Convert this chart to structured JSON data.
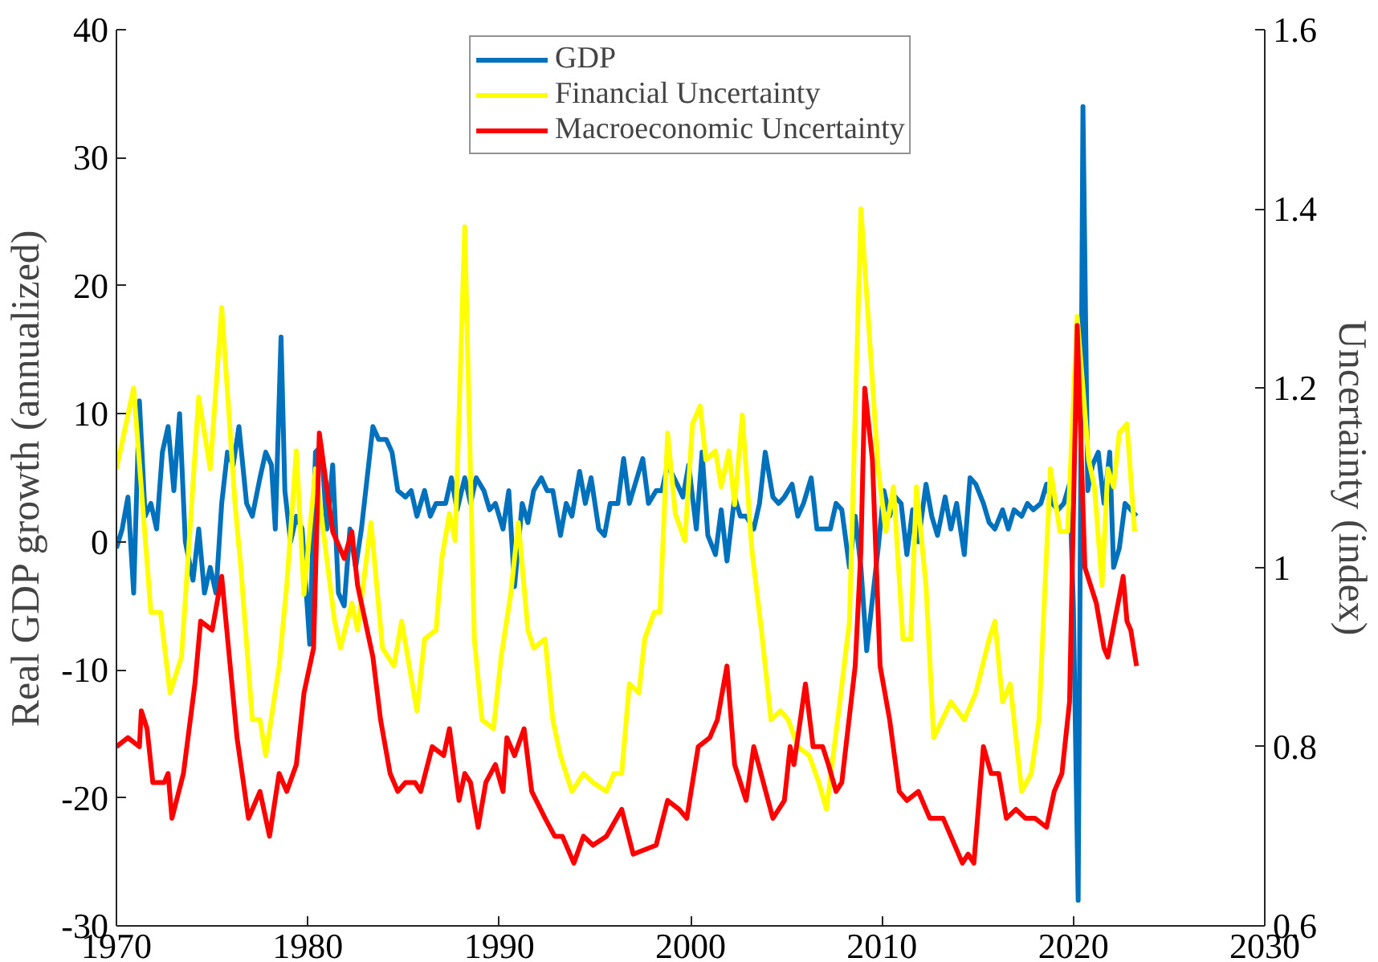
{
  "chart_data": {
    "type": "line",
    "ylabel": "Real GDP growth (annualized)",
    "y2label": "Uncertainty (index)",
    "xlim": [
      1970,
      2030
    ],
    "xticks": [
      1970,
      1980,
      1990,
      2000,
      2010,
      2020,
      2030
    ],
    "ylim": [
      -30,
      40
    ],
    "yticks": [
      -30,
      -20,
      -10,
      0,
      10,
      20,
      30,
      40
    ],
    "y2lim": [
      0.6,
      1.6
    ],
    "y2ticks": [
      0.6,
      0.8,
      1,
      1.2,
      1.4,
      1.6
    ],
    "grid": false,
    "legend": "top",
    "marker": "none",
    "line_style": "solid",
    "series": [
      {
        "name": "GDP",
        "color": "#0072bd",
        "x": [
          1970.0,
          1970.3,
          1970.6,
          1970.9,
          1971.2,
          1971.5,
          1971.8,
          1972.1,
          1972.4,
          1972.7,
          1973.0,
          1973.3,
          1973.6,
          1974.0,
          1974.3,
          1974.6,
          1974.9,
          1975.2,
          1975.5,
          1975.8,
          1976.1,
          1976.4,
          1976.8,
          1977.1,
          1977.5,
          1977.8,
          1978.1,
          1978.3,
          1978.6,
          1978.8,
          1979.1,
          1979.4,
          1979.7,
          1980.1,
          1980.4,
          1980.7,
          1981.0,
          1981.3,
          1981.6,
          1981.9,
          1982.2,
          1982.5,
          1982.8,
          1983.1,
          1983.4,
          1983.7,
          1984.1,
          1984.4,
          1984.7,
          1985.1,
          1985.4,
          1985.7,
          1986.1,
          1986.4,
          1986.7,
          1987.2,
          1987.5,
          1987.8,
          1988.2,
          1988.5,
          1988.8,
          1989.2,
          1989.5,
          1989.8,
          1990.2,
          1990.5,
          1990.8,
          1991.2,
          1991.5,
          1991.8,
          1992.2,
          1992.5,
          1992.8,
          1993.2,
          1993.5,
          1993.8,
          1994.2,
          1994.5,
          1994.8,
          1995.2,
          1995.5,
          1995.8,
          1996.2,
          1996.5,
          1996.8,
          1997.2,
          1997.5,
          1997.8,
          1998.2,
          1998.5,
          1998.8,
          1999.3,
          1999.6,
          1999.9,
          2000.3,
          2000.6,
          2000.9,
          2001.3,
          2001.6,
          2001.9,
          2002.3,
          2002.6,
          2002.9,
          2003.3,
          2003.6,
          2003.9,
          2004.3,
          2004.6,
          2004.9,
          2005.3,
          2005.6,
          2005.9,
          2006.3,
          2006.6,
          2006.9,
          2007.3,
          2007.6,
          2007.9,
          2008.3,
          2008.6,
          2008.9,
          2009.2,
          2009.5,
          2009.8,
          2010.1,
          2010.4,
          2010.7,
          2011.0,
          2011.3,
          2011.6,
          2011.9,
          2012.3,
          2012.6,
          2012.9,
          2013.3,
          2013.6,
          2013.9,
          2014.3,
          2014.6,
          2014.9,
          2015.3,
          2015.6,
          2015.9,
          2016.3,
          2016.6,
          2016.9,
          2017.3,
          2017.6,
          2017.9,
          2018.3,
          2018.6,
          2018.9,
          2019.2,
          2019.5,
          2019.8,
          2020.0,
          2020.25,
          2020.5,
          2020.75,
          2021.0,
          2021.3,
          2021.6,
          2021.9,
          2022.1,
          2022.4,
          2022.7,
          2023.0,
          2023.3
        ],
        "values": [
          -0.5,
          1,
          3.5,
          -4,
          11,
          2,
          3,
          1,
          7,
          9,
          4,
          10,
          0,
          -3,
          1,
          -4,
          -2,
          -4,
          3,
          7,
          6,
          9,
          3,
          2,
          5,
          7,
          6,
          1,
          16,
          4,
          0,
          2,
          1,
          -8,
          7,
          7.5,
          1,
          6,
          -4,
          -5,
          1,
          -2,
          1,
          5,
          9,
          8,
          8,
          7,
          4,
          3.5,
          4,
          2,
          4,
          2,
          3,
          3,
          5,
          2.5,
          5,
          3,
          5,
          4,
          2.5,
          3,
          1,
          4,
          -3.5,
          3,
          1.5,
          4,
          5,
          4,
          4,
          0.5,
          3,
          2,
          5.5,
          3,
          5,
          1,
          0.5,
          3,
          3,
          6.5,
          3,
          5,
          6.5,
          3,
          4,
          4,
          6,
          4.5,
          3.5,
          6,
          1,
          7,
          0.5,
          -1,
          2.5,
          -1.5,
          3.5,
          2,
          2,
          1,
          3,
          7,
          3.5,
          3,
          3.5,
          4.5,
          2,
          3,
          5,
          1,
          1,
          1,
          3,
          2.5,
          -2,
          2,
          -2,
          -8.5,
          -4.5,
          -0.5,
          4,
          2,
          3.5,
          3,
          -1,
          2.5,
          0,
          4.5,
          2,
          0.5,
          3.5,
          1,
          3,
          -1,
          5,
          4.5,
          3,
          1.5,
          1,
          2.5,
          1,
          2.5,
          2,
          3,
          2.5,
          3,
          4.5,
          3,
          2.5,
          3,
          4.5,
          -5,
          -28,
          34,
          4,
          6,
          7,
          3,
          7,
          -2,
          -0.5,
          3,
          2.5,
          2
        ]
      },
      {
        "name": "Financial Uncertainty",
        "color": "#ffff00",
        "axis": "y2",
        "x": [
          1970.0,
          1970.9,
          1971.8,
          1972.3,
          1972.8,
          1973.4,
          1974.3,
          1974.9,
          1975.5,
          1976.2,
          1976.5,
          1977.1,
          1977.5,
          1977.8,
          1978.5,
          1978.9,
          1979.4,
          1979.8,
          1980.4,
          1981.4,
          1981.7,
          1982.3,
          1982.6,
          1983.3,
          1983.9,
          1984.5,
          1984.9,
          1985.7,
          1986.1,
          1986.7,
          1987.0,
          1987.4,
          1987.7,
          1988.2,
          1988.7,
          1989.1,
          1989.7,
          1990.1,
          1990.6,
          1991.0,
          1991.5,
          1991.8,
          1992.4,
          1992.8,
          1993.2,
          1993.8,
          1994.4,
          1994.9,
          1995.6,
          1996.0,
          1996.4,
          1996.8,
          1997.3,
          1997.6,
          1998.1,
          1998.4,
          1998.8,
          1999.2,
          1999.7,
          2000.1,
          2000.5,
          2000.8,
          2001.3,
          2001.6,
          2002.0,
          2002.3,
          2002.7,
          2003.2,
          2003.7,
          2004.2,
          2004.7,
          2005.1,
          2005.6,
          2006.2,
          2006.7,
          2007.1,
          2007.8,
          2008.3,
          2008.9,
          2009.4,
          2009.8,
          2010.2,
          2010.6,
          2011.1,
          2011.5,
          2011.8,
          2012.3,
          2012.7,
          2013.6,
          2014.3,
          2014.9,
          2015.6,
          2015.9,
          2016.3,
          2016.7,
          2017.3,
          2017.8,
          2018.2,
          2018.8,
          2019.3,
          2019.7,
          2020.2,
          2020.8,
          2021.1,
          2021.5,
          2021.8,
          2022.1,
          2022.4,
          2022.8,
          2023.2
        ],
        "values": [
          1.11,
          1.2,
          0.95,
          0.95,
          0.86,
          0.9,
          1.19,
          1.11,
          1.29,
          1.07,
          1.0,
          0.83,
          0.83,
          0.79,
          0.89,
          0.98,
          1.13,
          0.97,
          1.11,
          0.94,
          0.91,
          0.96,
          0.93,
          1.05,
          0.91,
          0.89,
          0.94,
          0.84,
          0.92,
          0.93,
          1.01,
          1.06,
          1.03,
          1.38,
          0.92,
          0.83,
          0.82,
          0.9,
          0.97,
          1.05,
          0.93,
          0.91,
          0.92,
          0.83,
          0.79,
          0.75,
          0.77,
          0.76,
          0.75,
          0.77,
          0.77,
          0.87,
          0.86,
          0.92,
          0.95,
          0.95,
          1.15,
          1.06,
          1.03,
          1.16,
          1.18,
          1.12,
          1.13,
          1.09,
          1.13,
          1.07,
          1.17,
          1.02,
          0.93,
          0.83,
          0.84,
          0.83,
          0.8,
          0.79,
          0.76,
          0.73,
          0.85,
          0.94,
          1.4,
          1.24,
          1.11,
          1.04,
          1.09,
          0.92,
          0.92,
          1.09,
          0.98,
          0.81,
          0.85,
          0.83,
          0.86,
          0.92,
          0.94,
          0.85,
          0.87,
          0.75,
          0.77,
          0.83,
          1.11,
          1.04,
          1.04,
          1.28,
          1.12,
          1.09,
          0.98,
          1.11,
          1.09,
          1.15,
          1.16,
          1.04
        ]
      },
      {
        "name": "Macroeconomic Uncertainty",
        "color": "#ff0000",
        "axis": "y2",
        "x": [
          1970.0,
          1970.6,
          1971.2,
          1971.3,
          1971.6,
          1971.9,
          1972.5,
          1972.7,
          1972.9,
          1973.5,
          1974.1,
          1974.4,
          1975.0,
          1975.5,
          1975.9,
          1976.3,
          1976.9,
          1977.5,
          1978.0,
          1978.5,
          1978.9,
          1979.4,
          1979.8,
          1980.3,
          1980.6,
          1981.3,
          1981.9,
          1982.3,
          1982.6,
          1983.4,
          1983.8,
          1984.3,
          1984.7,
          1985.1,
          1985.6,
          1985.9,
          1986.5,
          1987.1,
          1987.4,
          1987.9,
          1988.2,
          1988.5,
          1988.9,
          1989.3,
          1989.8,
          1990.2,
          1990.4,
          1990.8,
          1991.3,
          1991.7,
          1992.4,
          1992.9,
          1993.3,
          1993.9,
          1994.4,
          1994.9,
          1995.6,
          1996.4,
          1997.0,
          1998.2,
          1998.8,
          1999.4,
          1999.8,
          2000.4,
          2001.0,
          2001.4,
          2001.9,
          2002.3,
          2002.9,
          2003.3,
          2004.3,
          2004.9,
          2005.2,
          2005.4,
          2006.0,
          2006.4,
          2006.9,
          2007.2,
          2007.6,
          2007.9,
          2008.6,
          2008.9,
          2009.1,
          2009.5,
          2009.9,
          2010.4,
          2010.9,
          2011.3,
          2011.9,
          2012.5,
          2013.2,
          2013.8,
          2014.2,
          2014.5,
          2014.8,
          2015.3,
          2015.7,
          2016.1,
          2016.5,
          2017.0,
          2017.5,
          2018.0,
          2018.6,
          2019.0,
          2019.4,
          2019.8,
          2020.2,
          2020.6,
          2021.2,
          2021.6,
          2021.8,
          2022.6,
          2022.8,
          2023.0,
          2023.3
        ],
        "values": [
          0.8,
          0.81,
          0.8,
          0.84,
          0.82,
          0.76,
          0.76,
          0.77,
          0.72,
          0.77,
          0.87,
          0.94,
          0.93,
          0.99,
          0.9,
          0.81,
          0.72,
          0.75,
          0.7,
          0.77,
          0.75,
          0.78,
          0.86,
          0.91,
          1.15,
          1.04,
          1.01,
          1.04,
          0.98,
          0.9,
          0.83,
          0.77,
          0.75,
          0.76,
          0.76,
          0.75,
          0.8,
          0.79,
          0.82,
          0.74,
          0.77,
          0.76,
          0.71,
          0.76,
          0.78,
          0.75,
          0.81,
          0.79,
          0.82,
          0.75,
          0.72,
          0.7,
          0.7,
          0.67,
          0.7,
          0.69,
          0.7,
          0.73,
          0.68,
          0.69,
          0.74,
          0.73,
          0.72,
          0.8,
          0.81,
          0.83,
          0.89,
          0.78,
          0.74,
          0.8,
          0.72,
          0.74,
          0.8,
          0.78,
          0.87,
          0.8,
          0.8,
          0.78,
          0.75,
          0.76,
          0.89,
          1.02,
          1.2,
          1.12,
          0.89,
          0.83,
          0.75,
          0.74,
          0.75,
          0.72,
          0.72,
          0.69,
          0.67,
          0.68,
          0.67,
          0.8,
          0.77,
          0.77,
          0.72,
          0.73,
          0.72,
          0.72,
          0.71,
          0.75,
          0.77,
          0.85,
          1.27,
          1.0,
          0.96,
          0.91,
          0.9,
          0.99,
          0.94,
          0.93,
          0.89
        ]
      }
    ]
  }
}
